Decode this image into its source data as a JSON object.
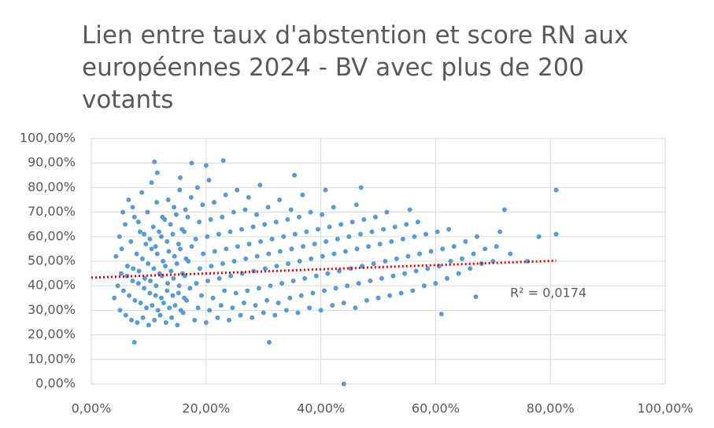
{
  "chart_data": {
    "type": "scatter",
    "title": [
      "Lien entre taux d'abstention et score RN aux",
      "européennes 2024 - BV avec plus de 200",
      "votants"
    ],
    "grid": true,
    "xlim": [
      0,
      100
    ],
    "ylim": [
      0,
      100
    ],
    "xticks": [
      {
        "value": 0,
        "label": "0,00%"
      },
      {
        "value": 20,
        "label": "20,00%"
      },
      {
        "value": 40,
        "label": "40,00%"
      },
      {
        "value": 60,
        "label": "60,00%"
      },
      {
        "value": 80,
        "label": "80,00%"
      },
      {
        "value": 100,
        "label": "100,00%"
      }
    ],
    "yticks": [
      {
        "value": 0,
        "label": "0,00%"
      },
      {
        "value": 10,
        "label": "10,00%"
      },
      {
        "value": 20,
        "label": "20,00%"
      },
      {
        "value": 30,
        "label": "30,00%"
      },
      {
        "value": 40,
        "label": "40,00%"
      },
      {
        "value": 50,
        "label": "50,00%"
      },
      {
        "value": 60,
        "label": "60,00%"
      },
      {
        "value": 70,
        "label": "70,00%"
      },
      {
        "value": 80,
        "label": "80,00%"
      },
      {
        "value": 90,
        "label": "90,00%"
      },
      {
        "value": 100,
        "label": "100,00%"
      }
    ],
    "series": [
      {
        "color": "#5b9bd5",
        "x": [
          4,
          4.6,
          5.2,
          4.3,
          4.9,
          5.5,
          5,
          5.6,
          6.2,
          5.3,
          5.9,
          6.5,
          6,
          6.6,
          7.2,
          6.3,
          6.9,
          7.5,
          7,
          7.6,
          8.2,
          7.3,
          7.9,
          8.5,
          7.2,
          8,
          8.6,
          9.2,
          8.3,
          8.9,
          9.5,
          8.2,
          8.8,
          9,
          9.6,
          10.2,
          9.3,
          9.9,
          10.5,
          9.2,
          9.8,
          10,
          10.6,
          11.2,
          10.3,
          10.9,
          11.5,
          10.2,
          10.8,
          11.4,
          10.5,
          11,
          11.6,
          12.2,
          11.3,
          11.9,
          12.5,
          11.2,
          11.8,
          12.4,
          11.5,
          12,
          12.6,
          13.2,
          12.3,
          12.9,
          13.5,
          12.2,
          12.8,
          13.4,
          13,
          13.6,
          14.2,
          13.3,
          13.9,
          14.5,
          13.2,
          13.8,
          14.4,
          14,
          14.6,
          15.2,
          14.3,
          14.9,
          15.5,
          14.2,
          14.8,
          15.4,
          15,
          15.6,
          16.2,
          15.3,
          15.9,
          16.5,
          15.2,
          15.8,
          16.4,
          15.5,
          16,
          16.6,
          17.2,
          16.3,
          16.9,
          17.5,
          16.2,
          16.8,
          17.4,
          18,
          18.6,
          19.2,
          18.3,
          18.9,
          19.5,
          18.2,
          18.8,
          19.4,
          18.5,
          20,
          20.6,
          21.2,
          20.3,
          20.9,
          21.5,
          20.2,
          20.8,
          21.4,
          20.5,
          22,
          22.6,
          23.2,
          22.3,
          22.9,
          23.5,
          22.2,
          22.8,
          23.4,
          24,
          24.6,
          25.2,
          24.3,
          24.9,
          25.5,
          24.2,
          24.8,
          25.4,
          26,
          26.6,
          27.2,
          26.3,
          26.9,
          27.5,
          26.2,
          26.8,
          27.4,
          28,
          28.6,
          29.2,
          28.3,
          28.9,
          29.5,
          28.2,
          28.8,
          29.4,
          30,
          30.6,
          31.2,
          30.3,
          30.9,
          31.5,
          30.2,
          30.8,
          32,
          32.6,
          33.2,
          32.3,
          32.9,
          33.5,
          32.2,
          32.8,
          34,
          34.6,
          35.2,
          34.3,
          34.9,
          35.5,
          34.2,
          34.8,
          35.4,
          36,
          36.6,
          37.2,
          36.3,
          36.9,
          37.5,
          36.2,
          36.8,
          38,
          38.6,
          39.2,
          38.3,
          38.9,
          39.5,
          38.2,
          40,
          40.6,
          41.2,
          40.3,
          40.9,
          41.5,
          40.2,
          40.8,
          42,
          42.6,
          43.2,
          42.3,
          42.9,
          43.5,
          42.2,
          44,
          44.6,
          45.2,
          44.3,
          44.9,
          45.5,
          46,
          46.6,
          47.2,
          46.3,
          46.9,
          47.5,
          46.2,
          48,
          48.6,
          49.2,
          48.3,
          48.9,
          49.5,
          50,
          50.6,
          51.2,
          50.3,
          50.9,
          51.5,
          52,
          52.6,
          53.2,
          52.3,
          52.9,
          54,
          54.6,
          55.2,
          54.3,
          54.9,
          55.5,
          56,
          56.6,
          57.2,
          56.3,
          56.9,
          58,
          58.6,
          59.2,
          58.3,
          60,
          60.6,
          61.2,
          60.3,
          62,
          62.6,
          63.2,
          62.3,
          64,
          64.6,
          65.2,
          66,
          66.6,
          67.2,
          68,
          68.6,
          70,
          70.6,
          71.2,
          44,
          7.5,
          31,
          81,
          81,
          11,
          23,
          17.5,
          20,
          61,
          67,
          72,
          78,
          76,
          73,
          47
        ],
        "values": [
          35,
          40,
          45,
          52,
          60,
          70,
          30,
          38,
          44,
          55,
          65,
          75,
          28,
          36,
          42,
          48,
          58,
          68,
          26,
          34,
          41,
          47,
          53,
          62,
          72,
          25,
          33,
          39,
          46,
          51,
          57,
          66,
          78,
          27,
          31,
          37,
          43,
          49,
          55,
          61,
          70,
          24,
          32,
          36,
          42,
          47,
          53,
          59,
          64,
          74,
          82,
          26,
          30,
          35,
          40,
          45,
          50,
          56,
          62,
          68,
          86,
          28,
          33,
          38,
          44,
          48,
          54,
          60,
          67,
          75,
          25,
          31,
          36,
          41,
          46,
          52,
          58,
          65,
          72,
          27,
          32,
          37,
          43,
          49,
          55,
          61,
          69,
          79,
          24,
          30,
          35,
          40,
          45,
          51,
          57,
          63,
          71,
          84,
          29,
          34,
          39,
          44,
          50,
          56,
          62,
          68,
          76,
          26,
          31,
          36,
          41,
          47,
          53,
          59,
          66,
          73,
          80,
          25,
          30,
          35,
          42,
          48,
          54,
          60,
          67,
          74,
          83,
          27,
          32,
          38,
          43,
          49,
          55,
          61,
          68,
          77,
          26,
          31,
          37,
          44,
          50,
          56,
          62,
          70,
          79,
          28,
          33,
          38,
          45,
          51,
          57,
          63,
          71,
          76,
          27,
          32,
          39,
          46,
          52,
          58,
          64,
          69,
          81,
          29,
          34,
          40,
          47,
          53,
          59,
          65,
          72,
          28,
          33,
          41,
          48,
          54,
          60,
          66,
          75,
          30,
          35,
          42,
          49,
          55,
          61,
          67,
          71,
          85,
          29,
          36,
          43,
          50,
          56,
          62,
          68,
          77,
          31,
          37,
          44,
          51,
          57,
          63,
          70,
          30,
          38,
          45,
          52,
          58,
          64,
          69,
          79,
          32,
          39,
          46,
          53,
          59,
          65,
          72,
          33,
          40,
          47,
          54,
          60,
          66,
          31,
          41,
          48,
          55,
          61,
          67,
          73,
          34,
          42,
          49,
          56,
          62,
          68,
          35,
          43,
          50,
          57,
          63,
          70,
          36,
          44,
          51,
          58,
          64,
          37,
          45,
          52,
          59,
          65,
          71,
          38,
          46,
          53,
          60,
          66,
          40,
          47,
          54,
          61,
          41,
          48,
          55,
          62,
          43,
          50,
          56,
          63,
          45,
          51,
          58,
          47,
          53,
          60,
          49,
          55,
          50,
          56,
          62,
          0,
          17,
          17,
          79,
          61,
          90.5,
          91,
          90,
          89,
          28.5,
          35.5,
          71,
          60,
          50,
          53,
          80
        ]
      }
    ],
    "trendline": {
      "x": [
        0,
        81
      ],
      "values": [
        43.3,
        50.2
      ],
      "color": "#e00000",
      "label": "R² = 0,0174"
    }
  }
}
